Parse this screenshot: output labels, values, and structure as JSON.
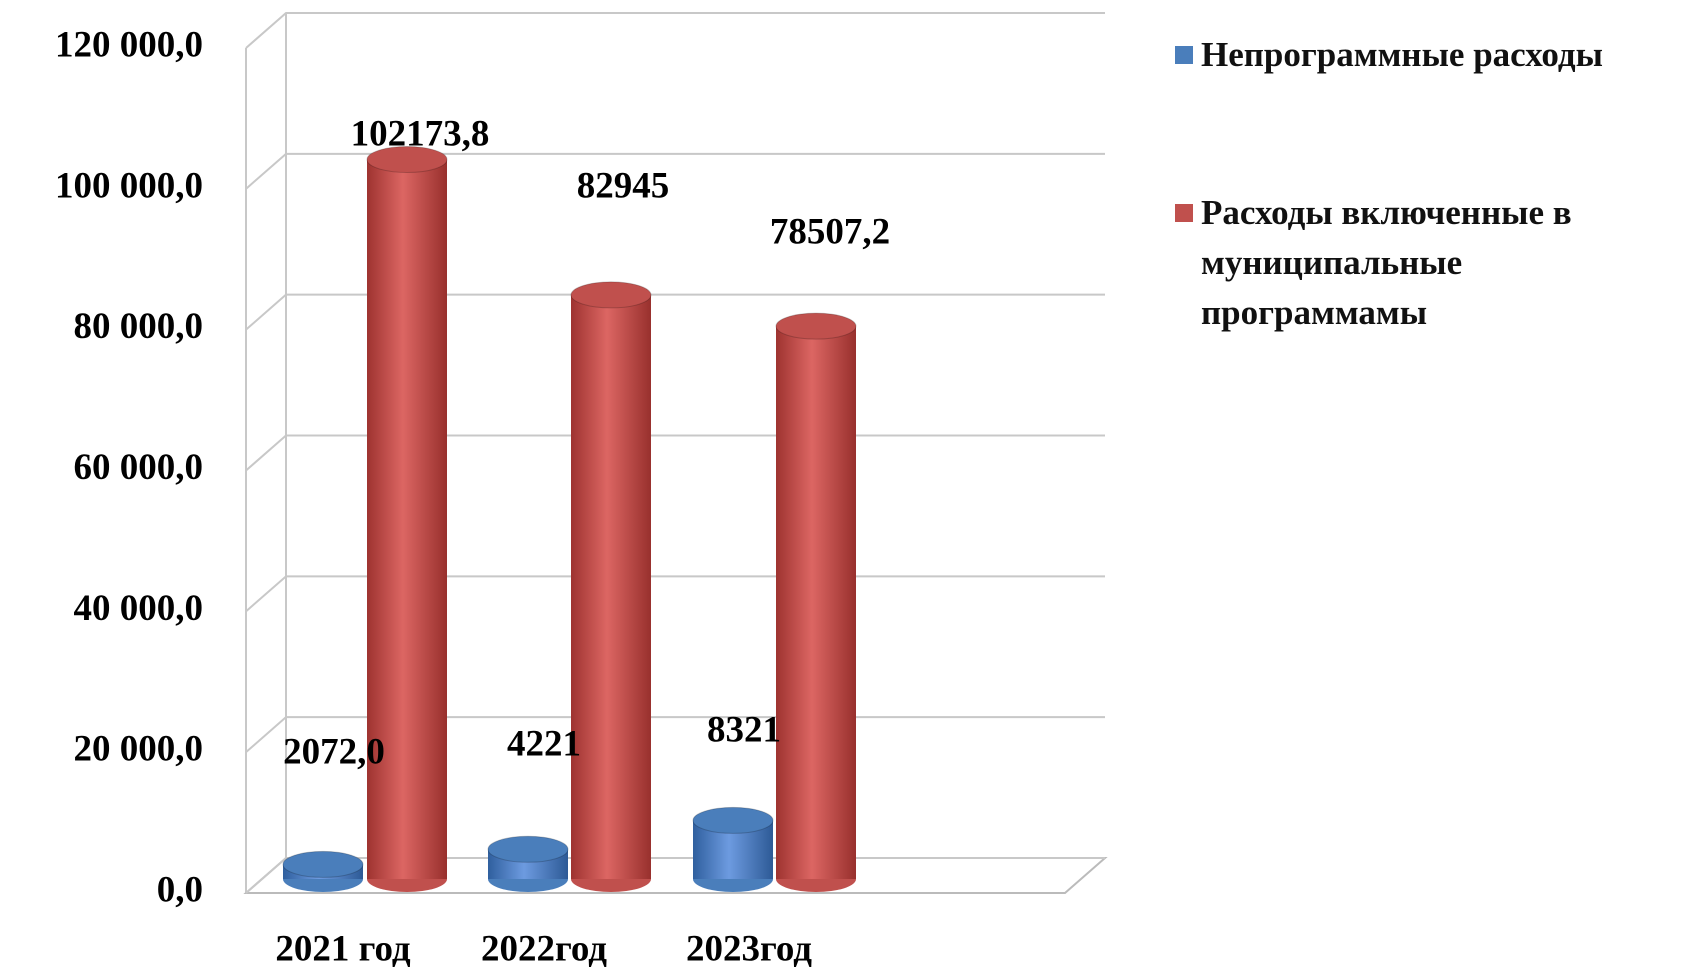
{
  "chart_data": {
    "type": "bar3d",
    "categories": [
      "2021 год",
      "2022год",
      "2023год"
    ],
    "series": [
      {
        "name": "Непрограммные расходы",
        "color": "#4a7ebb",
        "values": [
          2072,
          4221,
          8321
        ],
        "value_labels": [
          "2072,0",
          "4221",
          "8321"
        ]
      },
      {
        "name": "Расходы включенные в муниципальные программамы",
        "color": "#c0504d",
        "values": [
          102173.8,
          82945,
          78507.2
        ],
        "value_labels": [
          "102173,8",
          "82945",
          "78507,2"
        ]
      }
    ],
    "ylim": [
      0,
      120000
    ],
    "yticks": [
      {
        "value": 0,
        "label": "0,0"
      },
      {
        "value": 20000,
        "label": "20 000,0"
      },
      {
        "value": 40000,
        "label": "40 000,0"
      },
      {
        "value": 60000,
        "label": "60 000,0"
      },
      {
        "value": 80000,
        "label": "80 000,0"
      },
      {
        "value": 100000,
        "label": "100 000,0"
      },
      {
        "value": 120000,
        "label": "120 000,0"
      }
    ],
    "grid": true,
    "legend": "right"
  }
}
